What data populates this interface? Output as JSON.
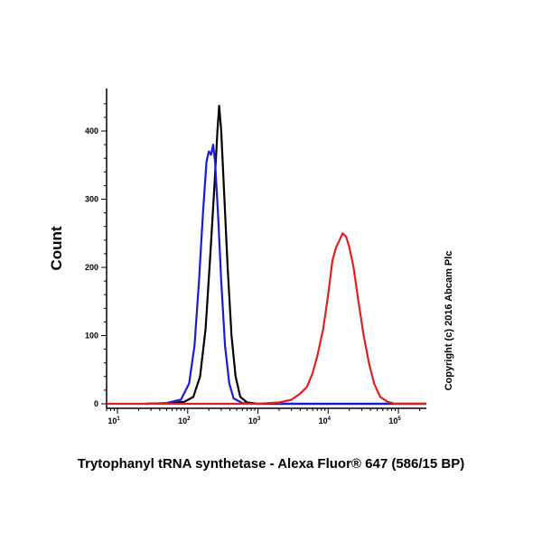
{
  "chart_data": {
    "type": "line",
    "title": "",
    "xlabel": "Trytophanyl tRNA synthetase - Alexa Fluor® 647 (586/15 BP)",
    "ylabel": "Count",
    "x_scale": "log",
    "xlim": [
      7,
      250000
    ],
    "ylim": [
      0,
      450
    ],
    "y_ticks": [
      0,
      100,
      200,
      300,
      400
    ],
    "x_ticks": [
      {
        "base": "10",
        "exp": "1",
        "value": 10
      },
      {
        "base": "10",
        "exp": "2",
        "value": 100
      },
      {
        "base": "10",
        "exp": "3",
        "value": 1000
      },
      {
        "base": "10",
        "exp": "4",
        "value": 10000
      },
      {
        "base": "10",
        "exp": "5",
        "value": 100000
      }
    ],
    "grid": false,
    "series": [
      {
        "color": "#000000",
        "points": [
          [
            25,
            0
          ],
          [
            60,
            1
          ],
          [
            90,
            3
          ],
          [
            120,
            10
          ],
          [
            150,
            40
          ],
          [
            180,
            110
          ],
          [
            210,
            220
          ],
          [
            240,
            320
          ],
          [
            265,
            400
          ],
          [
            280,
            437
          ],
          [
            300,
            400
          ],
          [
            330,
            310
          ],
          [
            370,
            200
          ],
          [
            420,
            100
          ],
          [
            480,
            40
          ],
          [
            560,
            10
          ],
          [
            700,
            2
          ],
          [
            1000,
            0
          ],
          [
            250000,
            0
          ]
        ]
      },
      {
        "color": "#1a1adb",
        "points": [
          [
            25,
            0
          ],
          [
            50,
            1
          ],
          [
            80,
            6
          ],
          [
            105,
            30
          ],
          [
            125,
            85
          ],
          [
            145,
            180
          ],
          [
            165,
            280
          ],
          [
            185,
            355
          ],
          [
            200,
            370
          ],
          [
            215,
            365
          ],
          [
            230,
            380
          ],
          [
            245,
            355
          ],
          [
            270,
            280
          ],
          [
            300,
            180
          ],
          [
            340,
            85
          ],
          [
            390,
            30
          ],
          [
            450,
            8
          ],
          [
            600,
            1
          ],
          [
            1000,
            0
          ],
          [
            250000,
            0
          ]
        ]
      },
      {
        "color": "#e02020",
        "points": [
          [
            7,
            0
          ],
          [
            1000,
            0
          ],
          [
            2000,
            2
          ],
          [
            3000,
            6
          ],
          [
            4000,
            15
          ],
          [
            5000,
            25
          ],
          [
            6000,
            45
          ],
          [
            7000,
            70
          ],
          [
            8500,
            110
          ],
          [
            10000,
            160
          ],
          [
            11500,
            210
          ],
          [
            13000,
            230
          ],
          [
            14500,
            240
          ],
          [
            16000,
            250
          ],
          [
            18000,
            245
          ],
          [
            20000,
            230
          ],
          [
            23000,
            200
          ],
          [
            27000,
            150
          ],
          [
            32000,
            100
          ],
          [
            38000,
            60
          ],
          [
            45000,
            30
          ],
          [
            55000,
            10
          ],
          [
            70000,
            3
          ],
          [
            90000,
            0
          ],
          [
            250000,
            0
          ]
        ]
      }
    ]
  },
  "watermark": "Copyright (c) 2016 Abcam Plc"
}
